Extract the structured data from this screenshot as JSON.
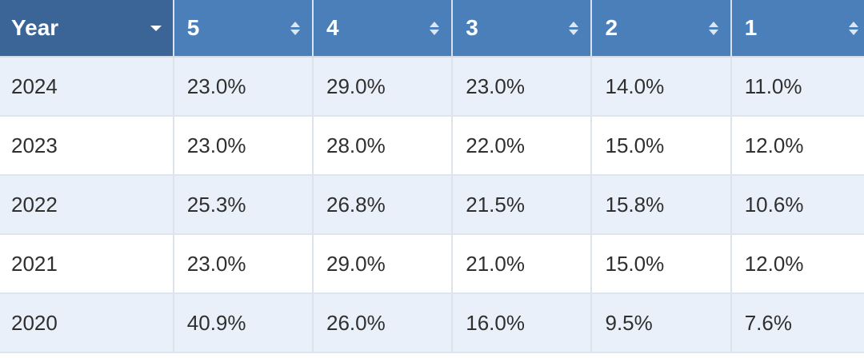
{
  "table": {
    "headers": [
      {
        "label": "Year",
        "sort": "dropdown"
      },
      {
        "label": "5",
        "sort": "both"
      },
      {
        "label": "4",
        "sort": "both"
      },
      {
        "label": "3",
        "sort": "both"
      },
      {
        "label": "2",
        "sort": "both"
      },
      {
        "label": "1",
        "sort": "both"
      }
    ],
    "rows": [
      [
        "2024",
        "23.0%",
        "29.0%",
        "23.0%",
        "14.0%",
        "11.0%"
      ],
      [
        "2023",
        "23.0%",
        "28.0%",
        "22.0%",
        "15.0%",
        "12.0%"
      ],
      [
        "2022",
        "25.3%",
        "26.8%",
        "21.5%",
        "15.8%",
        "10.6%"
      ],
      [
        "2021",
        "23.0%",
        "29.0%",
        "21.0%",
        "15.0%",
        "12.0%"
      ],
      [
        "2020",
        "40.9%",
        "26.0%",
        "16.0%",
        "9.5%",
        "7.6%"
      ]
    ]
  },
  "colors": {
    "header_bg": "#4a7fba",
    "year_header_bg": "#3b6497",
    "row_alt_bg": "#eaf0f9",
    "row_bg": "#ffffff",
    "text": "#2f2f2f"
  }
}
